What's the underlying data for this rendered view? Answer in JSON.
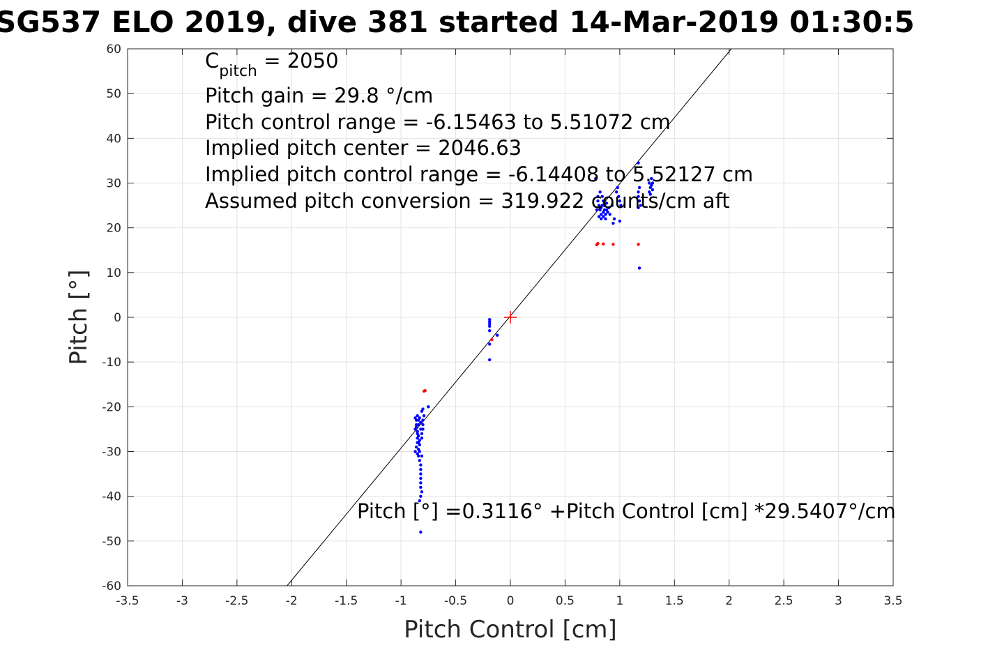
{
  "chart_data": {
    "type": "scatter",
    "title": "SG537 ELO 2019, dive 381 started 14-Mar-2019 01:30:5",
    "xlabel": "Pitch Control [cm]",
    "ylabel": "Pitch [°]",
    "xlim": [
      -3.5,
      3.5
    ],
    "ylim": [
      -60,
      60
    ],
    "xticks": [
      -3.5,
      -3,
      -2.5,
      -2,
      -1.5,
      -1,
      -0.5,
      0,
      0.5,
      1,
      1.5,
      2,
      2.5,
      3,
      3.5
    ],
    "yticks": [
      -60,
      -50,
      -40,
      -30,
      -20,
      -10,
      0,
      10,
      20,
      30,
      40,
      50,
      60
    ],
    "xtick_labels": [
      "-3.5",
      "-3",
      "-2.5",
      "-2",
      "-1.5",
      "-1",
      "-0.5",
      "0",
      "0.5",
      "1",
      "1.5",
      "2",
      "2.5",
      "3",
      "3.5"
    ],
    "ytick_labels": [
      "-60",
      "-50",
      "-40",
      "-30",
      "-20",
      "-10",
      "0",
      "10",
      "20",
      "30",
      "40",
      "50",
      "60"
    ],
    "grid": true,
    "annotation_lines": [
      {
        "main": "C",
        "sub": "pitch",
        "rest": " = 2050"
      },
      {
        "main": "Pitch gain = 29.8 °/cm"
      },
      {
        "main": "Pitch control range = -6.15463 to 5.51072 cm"
      },
      {
        "main": "Implied pitch center = 2046.63"
      },
      {
        "main": "Implied pitch control range = -6.14408 to 5.52127 cm"
      },
      {
        "main": "Assumed pitch conversion = 319.922 counts/cm aft"
      }
    ],
    "fit_label": "Pitch [°] =0.3116° +Pitch Control [cm] *29.5407°/cm",
    "fit_line": {
      "intercept": 0.3116,
      "slope": 29.5407,
      "color": "#000000"
    },
    "center_marker": {
      "x": 0,
      "y": 0,
      "color": "#ff0000"
    },
    "series": [
      {
        "color": "#0000ff",
        "points": [
          [
            -0.85,
            -22
          ],
          [
            -0.86,
            -23
          ],
          [
            -0.84,
            -24
          ],
          [
            -0.87,
            -25
          ],
          [
            -0.85,
            -26
          ],
          [
            -0.83,
            -22.5
          ],
          [
            -0.82,
            -23.5
          ],
          [
            -0.81,
            -21
          ],
          [
            -0.8,
            -20.5
          ],
          [
            -0.86,
            -24.5
          ],
          [
            -0.85,
            -25.5
          ],
          [
            -0.84,
            -26.5
          ],
          [
            -0.83,
            -27.5
          ],
          [
            -0.82,
            -25
          ],
          [
            -0.81,
            -26
          ],
          [
            -0.8,
            -24
          ],
          [
            -0.85,
            -28
          ],
          [
            -0.86,
            -29
          ],
          [
            -0.87,
            -30
          ],
          [
            -0.84,
            -31
          ],
          [
            -0.83,
            -32
          ],
          [
            -0.82,
            -33
          ],
          [
            -0.84,
            -29.5
          ],
          [
            -0.85,
            -30.5
          ],
          [
            -0.83,
            -28.5
          ],
          [
            -0.82,
            -34
          ],
          [
            -0.82,
            -35
          ],
          [
            -0.82,
            -36
          ],
          [
            -0.82,
            -37
          ],
          [
            -0.82,
            -38
          ],
          [
            -0.81,
            -39
          ],
          [
            -0.82,
            -40
          ],
          [
            -0.83,
            -41
          ],
          [
            -0.82,
            -48
          ],
          [
            -0.81,
            -27
          ],
          [
            -0.8,
            -23
          ],
          [
            -0.79,
            -22
          ],
          [
            -0.84,
            -23
          ],
          [
            -0.87,
            -22.5
          ],
          [
            -0.86,
            -24
          ],
          [
            -0.85,
            -27
          ],
          [
            -0.84,
            -28
          ],
          [
            -0.83,
            -30
          ],
          [
            -0.81,
            -31
          ],
          [
            -0.8,
            -25
          ],
          [
            -0.75,
            -20
          ],
          [
            -0.19,
            -0.5
          ],
          [
            -0.19,
            -1
          ],
          [
            -0.19,
            -1.5
          ],
          [
            -0.19,
            -2
          ],
          [
            -0.19,
            -3
          ],
          [
            -0.19,
            -6
          ],
          [
            -0.19,
            -9.5
          ],
          [
            -0.12,
            -4
          ],
          [
            0.78,
            31
          ],
          [
            0.8,
            26
          ],
          [
            0.81,
            25
          ],
          [
            0.82,
            24
          ],
          [
            0.83,
            23
          ],
          [
            0.84,
            25
          ],
          [
            0.85,
            26
          ],
          [
            0.86,
            24
          ],
          [
            0.87,
            23
          ],
          [
            0.88,
            24
          ],
          [
            0.8,
            27
          ],
          [
            0.82,
            28
          ],
          [
            0.84,
            27
          ],
          [
            0.86,
            25
          ],
          [
            0.81,
            22.5
          ],
          [
            0.83,
            22
          ],
          [
            0.85,
            22.5
          ],
          [
            0.87,
            22
          ],
          [
            0.89,
            23.5
          ],
          [
            0.91,
            23
          ],
          [
            0.9,
            24.5
          ],
          [
            0.79,
            24
          ],
          [
            0.85,
            23.5
          ],
          [
            0.83,
            24.5
          ],
          [
            0.86,
            26
          ],
          [
            0.88,
            25.5
          ],
          [
            0.93,
            25
          ],
          [
            0.95,
            22
          ],
          [
            0.94,
            21
          ],
          [
            0.97,
            28
          ],
          [
            0.98,
            29
          ],
          [
            0.99,
            27
          ],
          [
            1.0,
            26
          ],
          [
            1.01,
            25
          ],
          [
            1.0,
            21.5
          ],
          [
            1.17,
            28
          ],
          [
            1.18,
            29
          ],
          [
            1.17,
            27
          ],
          [
            1.18,
            26
          ],
          [
            1.19,
            25
          ],
          [
            1.17,
            24.5
          ],
          [
            1.17,
            34.5
          ],
          [
            1.18,
            11
          ],
          [
            1.27,
            30
          ],
          [
            1.28,
            29
          ],
          [
            1.29,
            31
          ],
          [
            1.3,
            30
          ],
          [
            1.27,
            28
          ],
          [
            1.28,
            27.5
          ],
          [
            1.29,
            29.5
          ],
          [
            1.3,
            28.5
          ]
        ]
      },
      {
        "color": "#ff0000",
        "points": [
          [
            -0.79,
            -16.5
          ],
          [
            -0.78,
            -16.4
          ],
          [
            -0.17,
            -5
          ],
          [
            0.79,
            16.2
          ],
          [
            0.8,
            16.5
          ],
          [
            0.85,
            16.4
          ],
          [
            0.94,
            16.3
          ],
          [
            1.17,
            16.3
          ]
        ]
      }
    ]
  }
}
